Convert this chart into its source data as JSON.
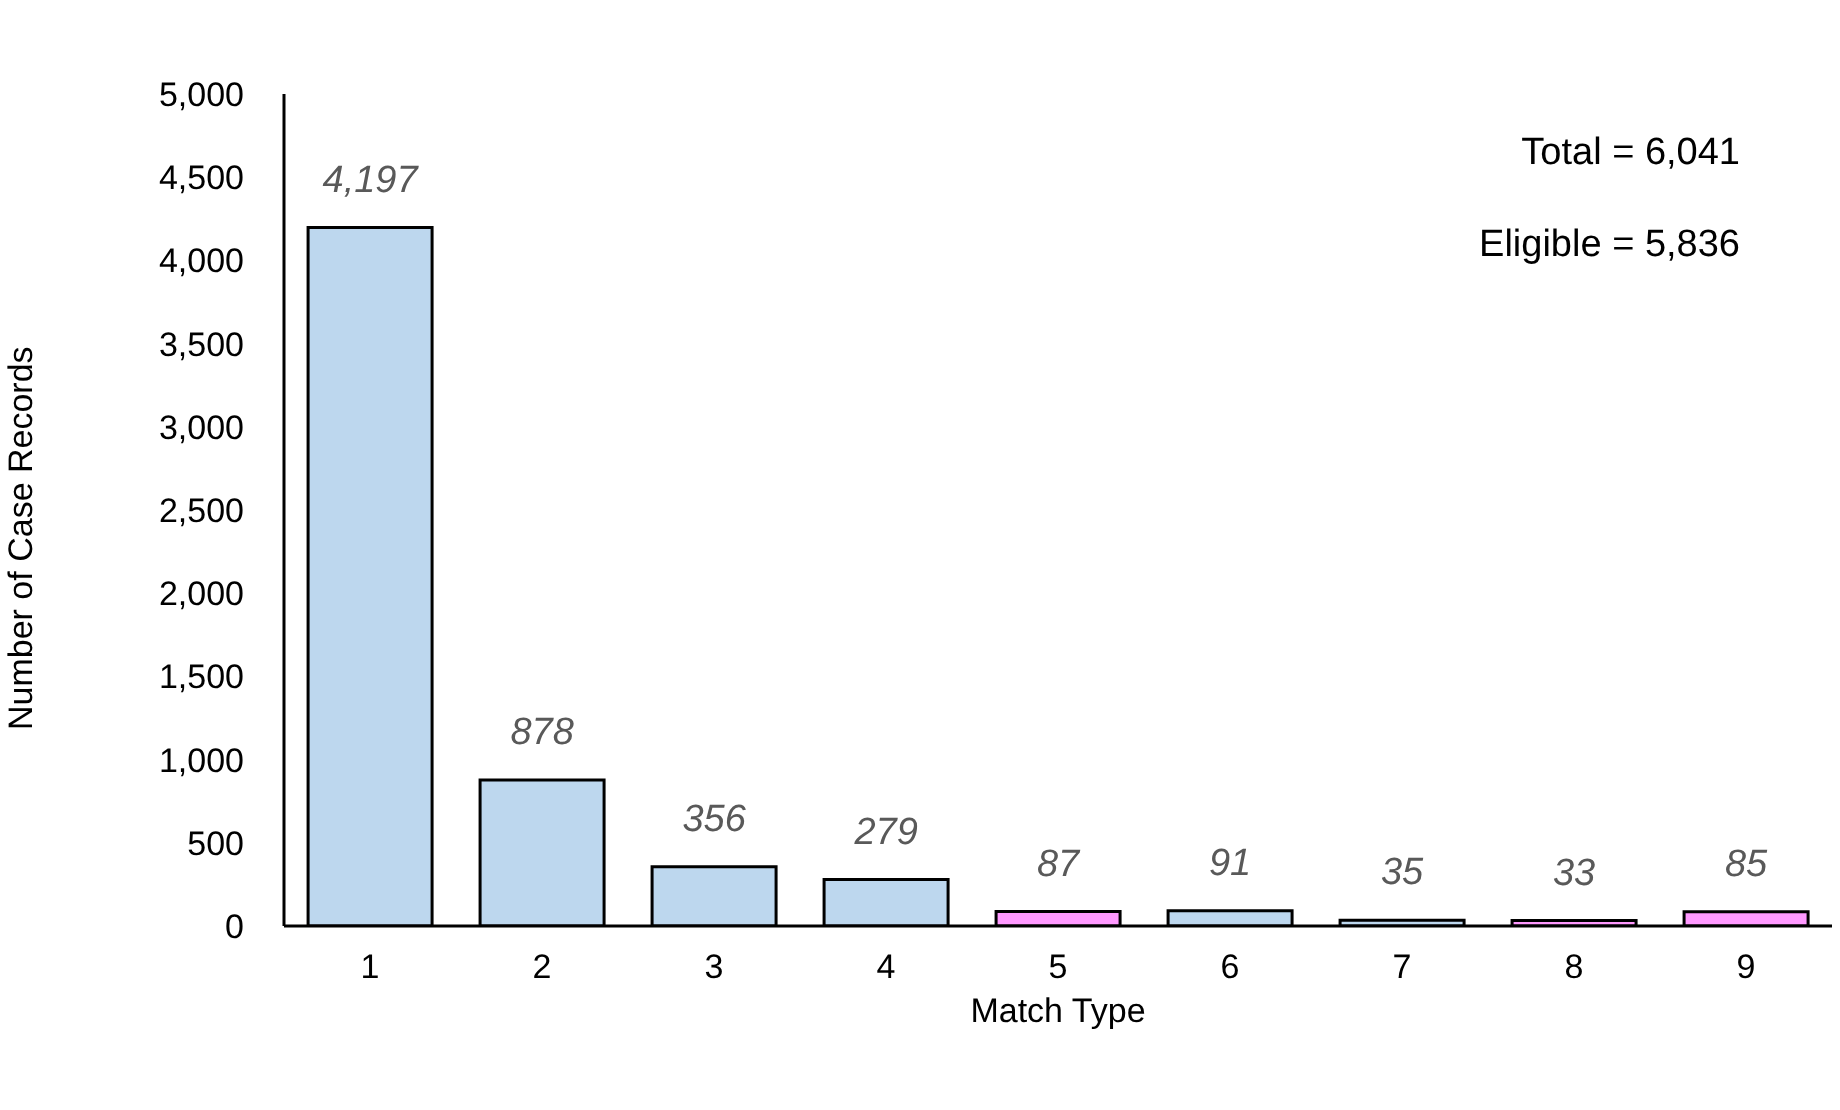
{
  "chart_data": {
    "type": "bar",
    "xlabel": "Match Type",
    "ylabel": "Number of Case Records",
    "categories": [
      "1",
      "2",
      "3",
      "4",
      "5",
      "6",
      "7",
      "8",
      "9"
    ],
    "values": [
      4197,
      878,
      356,
      279,
      87,
      91,
      35,
      33,
      85
    ],
    "colors": [
      "#bdd7ee",
      "#bdd7ee",
      "#bdd7ee",
      "#bdd7ee",
      "#ff99ff",
      "#bdd7ee",
      "#bdd7ee",
      "#ff99ff",
      "#ff99ff"
    ],
    "value_labels": [
      "4,197",
      "878",
      "356",
      "279",
      "87",
      "91",
      "35",
      "33",
      "85"
    ],
    "ylim": [
      0,
      5000
    ],
    "yticks": [
      {
        "value": 0,
        "label": "0"
      },
      {
        "value": 500,
        "label": "500"
      },
      {
        "value": 1000,
        "label": "1,000"
      },
      {
        "value": 1500,
        "label": "1,500"
      },
      {
        "value": 2000,
        "label": "2,000"
      },
      {
        "value": 2500,
        "label": "2,500"
      },
      {
        "value": 3000,
        "label": "3,000"
      },
      {
        "value": 3500,
        "label": "3,500"
      },
      {
        "value": 4000,
        "label": "4,000"
      },
      {
        "value": 4500,
        "label": "4,500"
      },
      {
        "value": 5000,
        "label": "5,000"
      }
    ],
    "grid": false,
    "legend": false,
    "annotations": [
      "Total = 6,041",
      "Eligible = 5,836"
    ]
  }
}
